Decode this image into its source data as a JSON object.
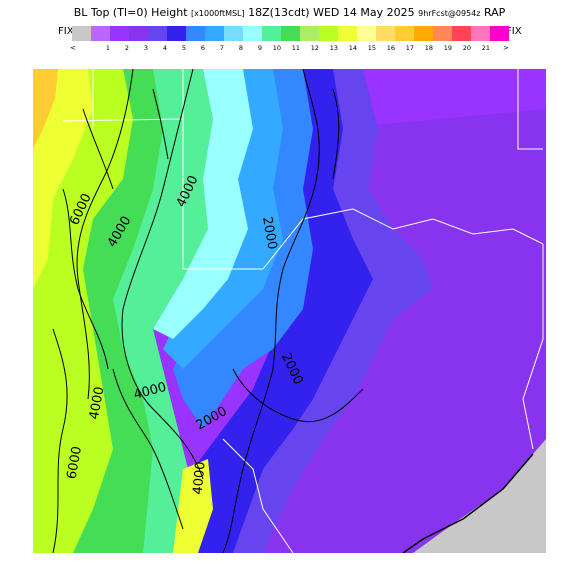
{
  "header": {
    "title_main": "BL Top (TI=0) Height",
    "title_units": "[x1000ftMSL]",
    "title_time": "18Z(13cdt) WED 14 May 2025",
    "title_fcst": "9hrFcst@0954z",
    "title_model": "RAP"
  },
  "scale": {
    "fix_left": "FIX",
    "fix_right": "FIX",
    "lt": "<",
    "gt": ">",
    "colors": [
      "#c8c8c8",
      "#bb66ff",
      "#9933ff",
      "#8833ee",
      "#6644ee",
      "#3322ee",
      "#3388ff",
      "#33aaff",
      "#77ddff",
      "#99ffff",
      "#55ee99",
      "#44dd55",
      "#aaee66",
      "#bbff22",
      "#eeff33",
      "#ffff99",
      "#ffdd66",
      "#ffcc33",
      "#ffaa00",
      "#ff8855",
      "#ff4455",
      "#ff77bb",
      "#ff00cc"
    ],
    "ticks": [
      "",
      "1",
      "2",
      "3",
      "4",
      "5",
      "6",
      "7",
      "8",
      "9",
      "10",
      "11",
      "12",
      "13",
      "14",
      "15",
      "16",
      "17",
      "18",
      "19",
      "20",
      "21",
      ""
    ]
  },
  "map": {
    "contour_labels": [
      "6000",
      "4000",
      "4000",
      "2000",
      "2000",
      "4000",
      "2000",
      "4000",
      "6000",
      "4000"
    ],
    "colors": {
      "purple": "#9933ff",
      "dark_purple": "#8833ee",
      "violet": "#6644ee",
      "blue": "#3322ee",
      "med_blue": "#3388ff",
      "light_blue": "#33aaff",
      "cyan": "#99ffff",
      "green": "#55ee99",
      "dark_green": "#44dd55",
      "yellow_green": "#bbff22",
      "yellow": "#eeff33",
      "orange": "#ffcc33",
      "gray": "#c8c8c8"
    }
  }
}
